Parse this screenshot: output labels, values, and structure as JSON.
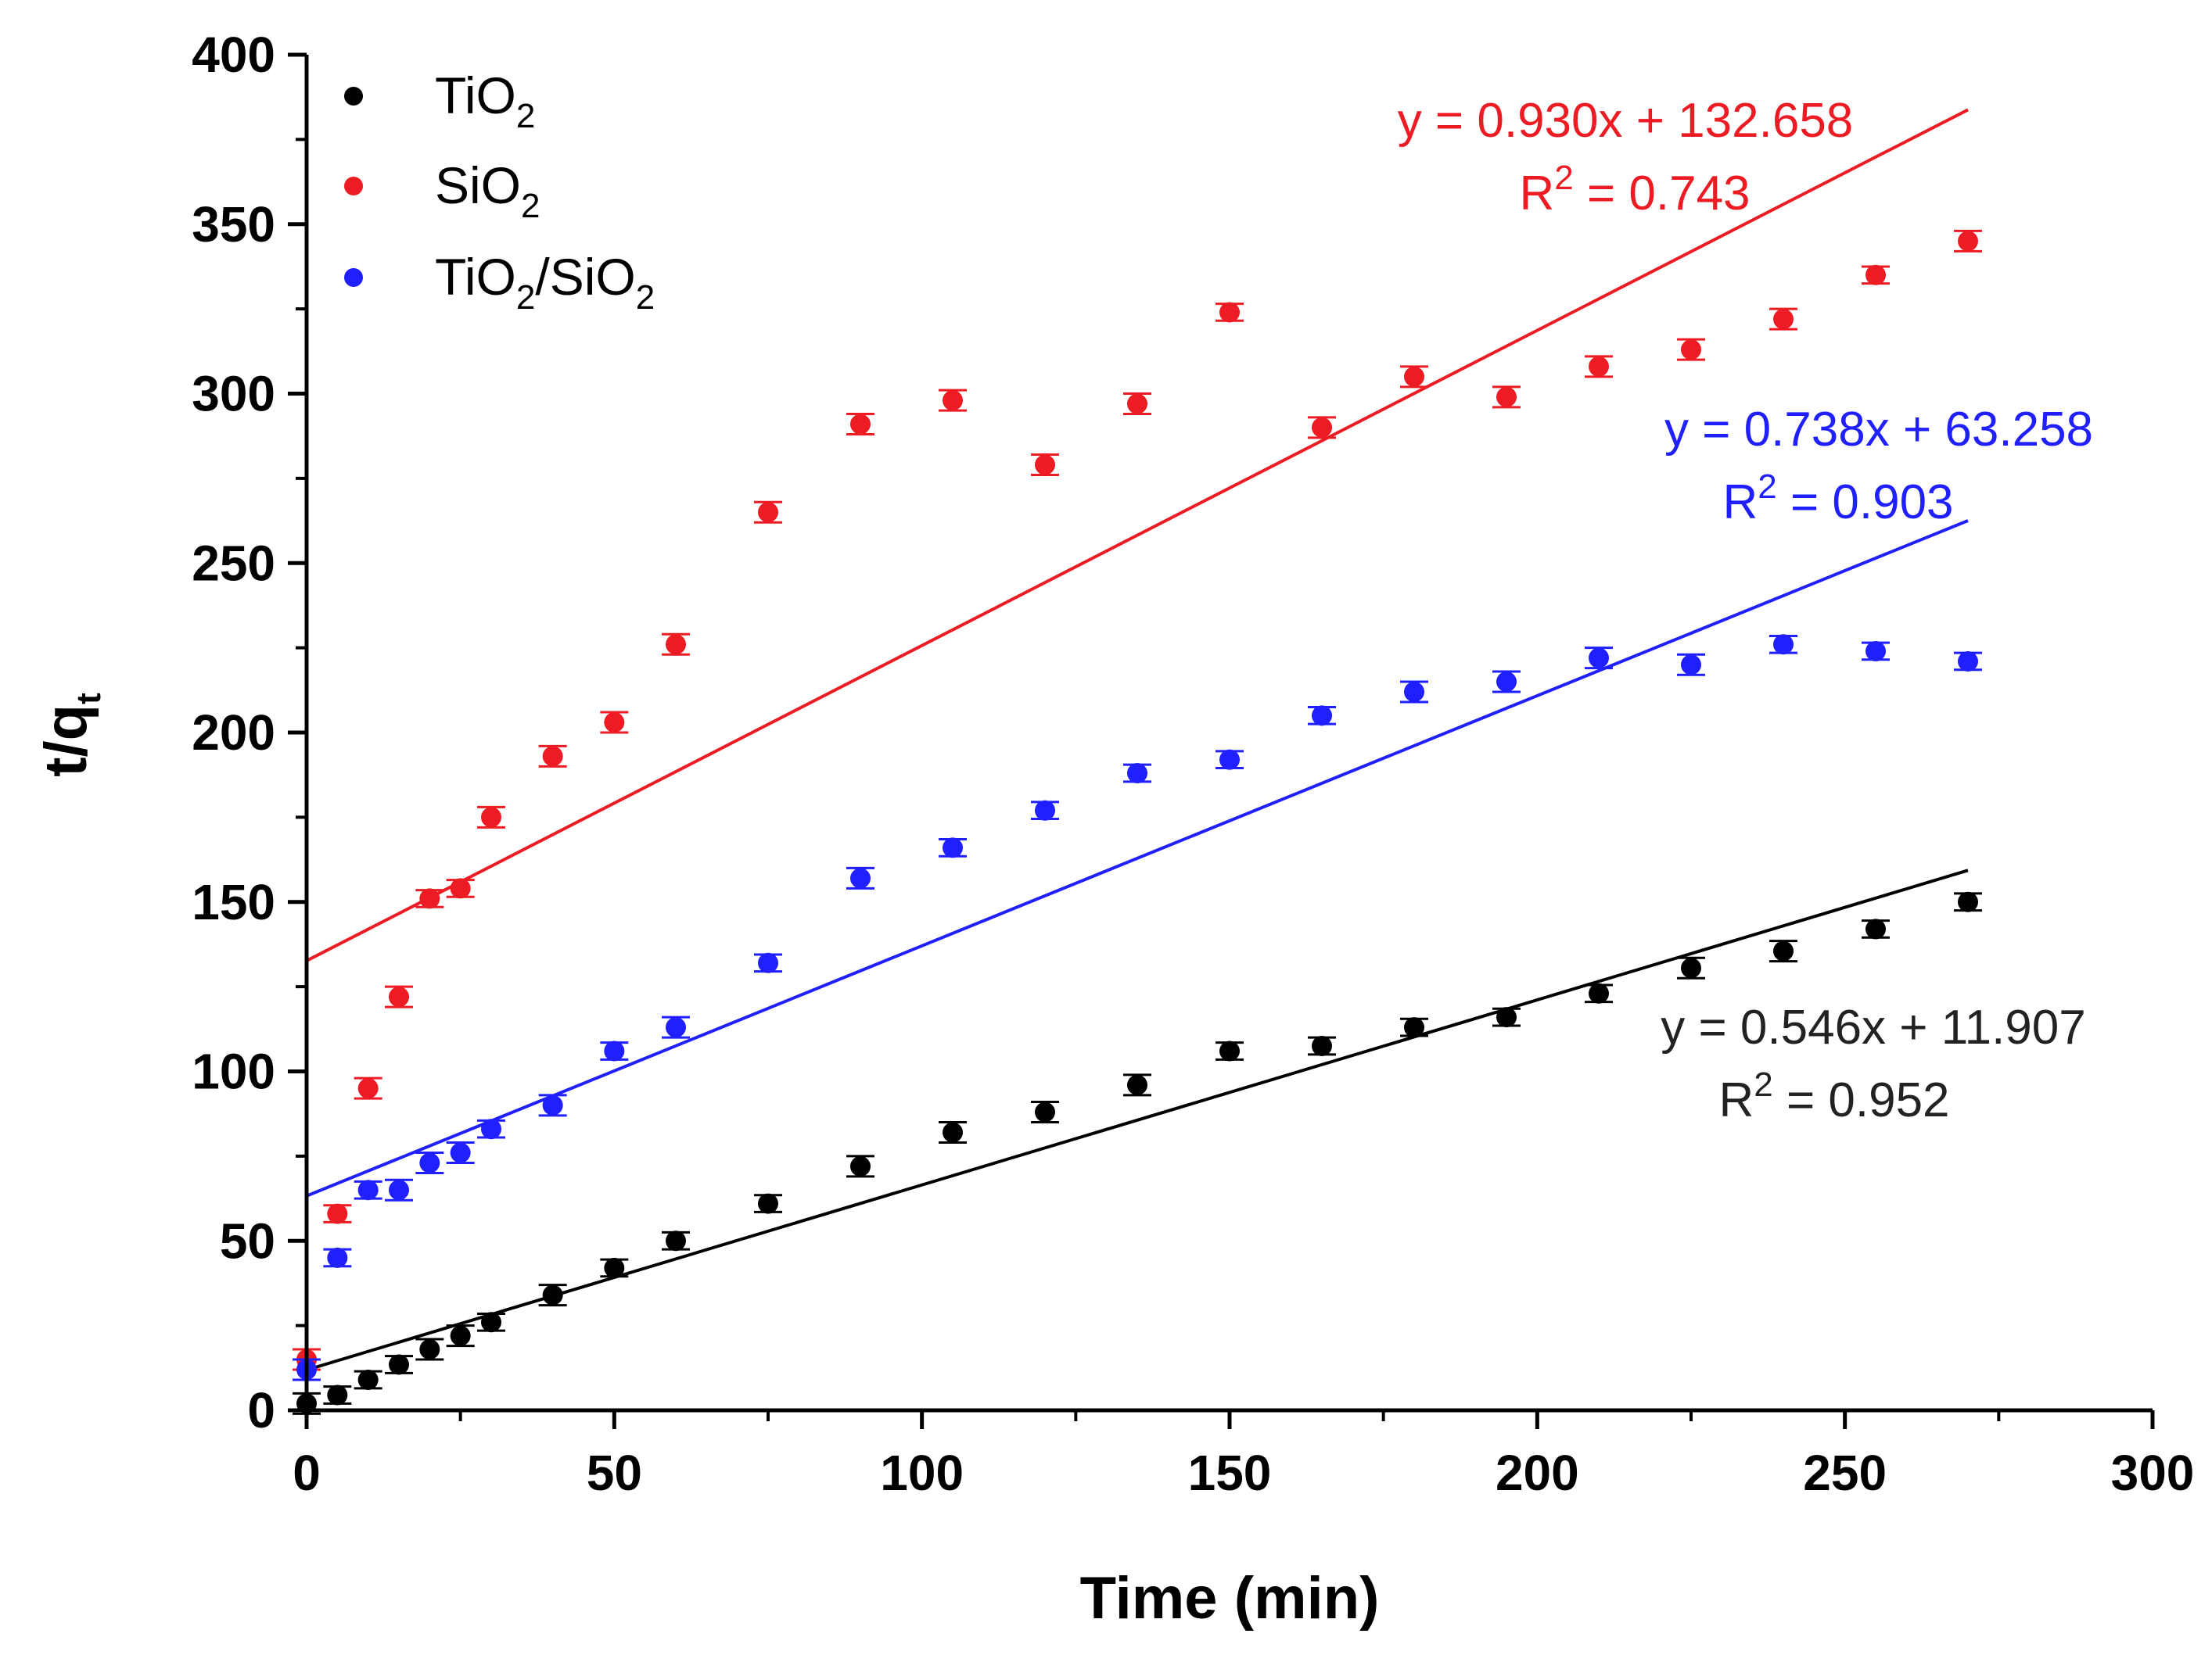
{
  "chart_data": {
    "type": "scatter",
    "title": "",
    "xlabel": "Time (min)",
    "ylabel": {
      "main": "t/q",
      "sub": "t"
    },
    "xlim": [
      0,
      300
    ],
    "ylim": [
      0,
      400
    ],
    "xticks": [
      "0",
      "50",
      "100",
      "150",
      "200",
      "250",
      "300"
    ],
    "yticks": [
      "0",
      "50",
      "100",
      "150",
      "200",
      "250",
      "300",
      "350",
      "400"
    ],
    "legend_position": "top-left",
    "x": [
      0,
      5,
      10,
      15,
      20,
      25,
      30,
      40,
      50,
      60,
      75,
      90,
      105,
      120,
      135,
      150,
      165,
      180,
      195,
      210,
      225,
      240,
      255,
      270
    ],
    "series": [
      {
        "key": "tio2",
        "name": "TiO2",
        "label_parts": [
          "TiO",
          "2",
          ""
        ],
        "color": "#000000",
        "values": [
          2,
          4.5,
          9,
          13.5,
          18,
          22,
          26,
          34,
          42,
          50,
          61,
          72,
          82,
          88,
          96,
          106,
          107.5,
          113,
          116,
          123,
          130.5,
          135.5,
          142,
          150
        ],
        "errors": [
          3,
          2.5,
          2.5,
          2.5,
          3,
          3,
          2.5,
          3,
          2.5,
          2.5,
          2.5,
          3,
          3,
          3,
          3,
          2.5,
          2.5,
          2.5,
          2.5,
          2.5,
          3,
          3,
          2.5,
          2.5
        ],
        "fit": {
          "slope": 0.546,
          "intercept": 11.907,
          "r2": "0.952",
          "equation": "y = 0.546x + 11.907",
          "r2_label": "R",
          "r2_value": " = 0.952"
        }
      },
      {
        "key": "sio2",
        "name": "SiO2",
        "label_parts": [
          "SiO",
          "2",
          ""
        ],
        "color": "#ed1c24",
        "values": [
          15,
          58,
          95,
          122,
          151,
          154,
          175,
          193,
          203,
          226,
          265,
          291,
          298,
          279,
          297,
          324,
          290,
          305,
          299,
          308,
          313,
          322,
          335,
          345
        ],
        "errors": [
          3,
          2.5,
          3,
          3,
          2.5,
          2.5,
          3,
          3,
          3,
          3,
          3,
          3,
          3,
          3,
          3,
          2.5,
          3,
          3,
          3,
          3,
          3,
          3,
          2.5,
          3
        ],
        "fit": {
          "slope": 0.93,
          "intercept": 132.658,
          "r2": "0.743",
          "equation": "y = 0.930x + 132.658",
          "r2_label": "R",
          "r2_value": " = 0.743"
        }
      },
      {
        "key": "tio2sio2",
        "name": "TiO2/SiO2",
        "label_parts": [
          "TiO",
          "2",
          "/SiO",
          "2"
        ],
        "color": "#1f1fff",
        "values": [
          12,
          45,
          65,
          65,
          73,
          76,
          83,
          90,
          106,
          113,
          132,
          157,
          166,
          177,
          188,
          192,
          205,
          212,
          215,
          222,
          220,
          226,
          224,
          221
        ],
        "errors": [
          3,
          2.5,
          2.5,
          3,
          3,
          3,
          2.5,
          3,
          2.5,
          3,
          2.5,
          3,
          2.5,
          2.5,
          2.5,
          2.5,
          2.5,
          3,
          3,
          3,
          3,
          2.5,
          2.5,
          2.5
        ],
        "fit": {
          "slope": 0.738,
          "intercept": 63.258,
          "r2": "0.903",
          "equation": "y = 0.738x + 63.258",
          "r2_label": "R",
          "r2_value": " = 0.903"
        }
      }
    ],
    "annotations": [
      {
        "series": "sio2",
        "equation": "y = 0.930x + 132.658",
        "r2_label": "R",
        "r2_sup": "2",
        "r2_value": " = 0.743"
      },
      {
        "series": "tio2sio2",
        "equation": "y = 0.738x + 63.258",
        "r2_label": "R",
        "r2_sup": "2",
        "r2_value": " = 0.903"
      },
      {
        "series": "tio2",
        "equation": "y = 0.546x + 11.907",
        "r2_label": "R",
        "r2_sup": "2",
        "r2_value": " = 0.952"
      }
    ]
  }
}
